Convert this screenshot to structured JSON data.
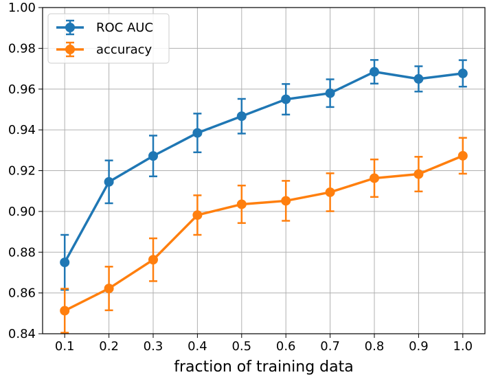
{
  "chart_data": {
    "type": "line",
    "xlabel": "fraction of training data",
    "ylabel": "",
    "title": "",
    "x": [
      0.1,
      0.2,
      0.3,
      0.4,
      0.5,
      0.6,
      0.7,
      0.8,
      0.9,
      1.0
    ],
    "x_tick_labels": [
      "0.1",
      "0.2",
      "0.3",
      "0.4",
      "0.5",
      "0.6",
      "0.7",
      "0.8",
      "0.9",
      "1.0"
    ],
    "y_tick_labels": [
      "0.84",
      "0.86",
      "0.88",
      "0.90",
      "0.92",
      "0.94",
      "0.96",
      "0.98",
      "1.00"
    ],
    "xlim": [
      0.05,
      1.05
    ],
    "ylim": [
      0.84,
      1.0
    ],
    "grid": true,
    "legend_position": "top-left",
    "error_bars": true,
    "series": [
      {
        "name": "ROC AUC",
        "color": "#1f77b4",
        "values": [
          0.875,
          0.9145,
          0.9272,
          0.9385,
          0.9467,
          0.955,
          0.958,
          0.9685,
          0.965,
          0.9677
        ],
        "errors": [
          0.0135,
          0.0105,
          0.01,
          0.0095,
          0.0085,
          0.0075,
          0.0068,
          0.0058,
          0.0062,
          0.0065
        ]
      },
      {
        "name": "accuracy",
        "color": "#ff7f0e",
        "values": [
          0.8513,
          0.8622,
          0.8763,
          0.8982,
          0.9035,
          0.9052,
          0.9094,
          0.9163,
          0.9183,
          0.9273
        ],
        "errors": [
          0.0108,
          0.0107,
          0.0105,
          0.0097,
          0.0092,
          0.0098,
          0.0093,
          0.0092,
          0.0085,
          0.0088
        ]
      }
    ]
  }
}
